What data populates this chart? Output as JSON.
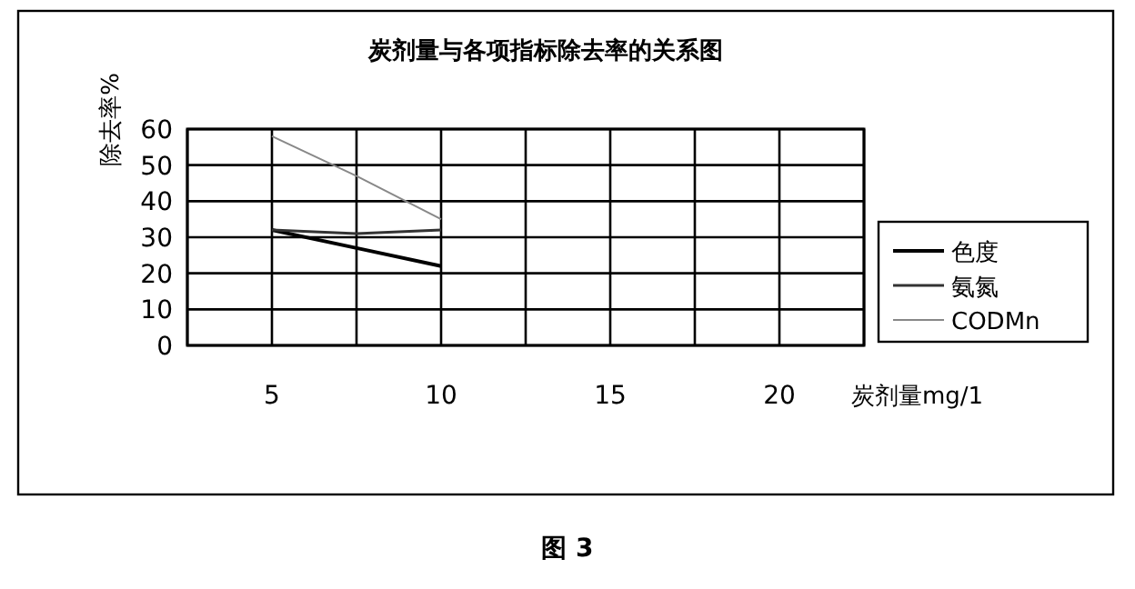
{
  "chart_data": {
    "type": "line",
    "title": "炭剂量与各项指标除去率的关系图",
    "xlabel": "炭剂量mg/1",
    "ylabel": "除去率%",
    "x": [
      5,
      7.5,
      10
    ],
    "series": [
      {
        "name": "色度",
        "color": "#000000",
        "values": [
          32,
          27,
          22
        ]
      },
      {
        "name": "氨氮",
        "color": "#333333",
        "values": [
          32,
          31,
          32
        ]
      },
      {
        "name": "CODMn",
        "color": "#888888",
        "values": [
          58,
          47,
          35
        ]
      }
    ],
    "xlim": [
      2.5,
      22.5
    ],
    "xticks": [
      {
        "value": 2.5,
        "label": null
      },
      5,
      {
        "value": 7.5,
        "label": null
      },
      10,
      {
        "value": 12.5,
        "label": null
      },
      15,
      {
        "value": 17.5,
        "label": null
      },
      20,
      {
        "value": 22.5,
        "label": null
      }
    ],
    "ylim": [
      0,
      60
    ],
    "yticks": [
      0,
      10,
      20,
      30,
      40,
      50,
      60
    ],
    "grid": true,
    "legend": "right",
    "marker": "none",
    "line_style": "solid",
    "annotations": [
      "图 3"
    ]
  }
}
